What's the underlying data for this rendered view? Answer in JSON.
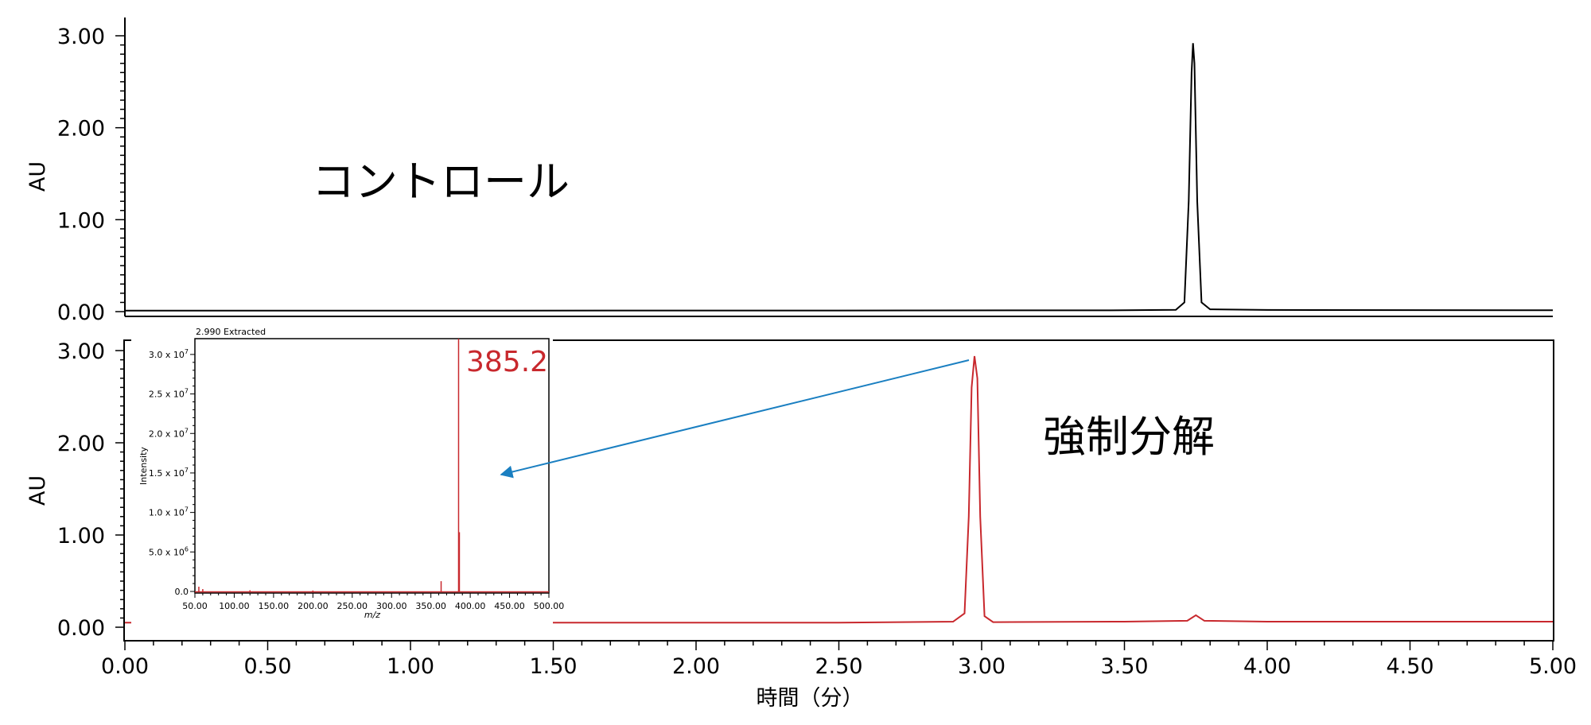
{
  "chart_data": [
    {
      "type": "line",
      "panel_label": "コントロール",
      "xlabel": "",
      "ylabel": "AU",
      "xlim": [
        0.0,
        5.0
      ],
      "ylim": [
        0.0,
        3.0
      ],
      "y_ticks": [
        "0.00",
        "1.00",
        "2.00",
        "3.00"
      ],
      "y_tick_values": [
        0,
        1,
        2,
        3
      ],
      "line_color": "#000000",
      "series": [
        {
          "points": [
            [
              0.0,
              0.01
            ],
            [
              2.5,
              0.012
            ],
            [
              3.5,
              0.015
            ],
            [
              3.68,
              0.02
            ],
            [
              3.71,
              0.1
            ],
            [
              3.725,
              1.2
            ],
            [
              3.735,
              2.6
            ],
            [
              3.74,
              2.92
            ],
            [
              3.745,
              2.7
            ],
            [
              3.755,
              1.2
            ],
            [
              3.77,
              0.1
            ],
            [
              3.8,
              0.025
            ],
            [
              4.0,
              0.018
            ],
            [
              5.0,
              0.015
            ]
          ]
        }
      ]
    },
    {
      "type": "line",
      "panel_label": "強制分解",
      "xlabel": "時間（分）",
      "ylabel": "AU",
      "xlim": [
        0.0,
        5.0
      ],
      "ylim": [
        0.0,
        3.0
      ],
      "x_ticks": [
        "0.00",
        "0.50",
        "1.00",
        "1.50",
        "2.00",
        "2.50",
        "3.00",
        "3.50",
        "4.00",
        "4.50",
        "5.00"
      ],
      "x_tick_values": [
        0,
        0.5,
        1,
        1.5,
        2,
        2.5,
        3,
        3.5,
        4,
        4.5,
        5
      ],
      "y_ticks": [
        "0.00",
        "1.00",
        "2.00",
        "3.00"
      ],
      "y_tick_values": [
        0,
        1,
        2,
        3
      ],
      "line_color": "#c8282d",
      "series": [
        {
          "points": [
            [
              0.0,
              0.05
            ],
            [
              2.5,
              0.05
            ],
            [
              2.9,
              0.06
            ],
            [
              2.94,
              0.15
            ],
            [
              2.955,
              1.2
            ],
            [
              2.965,
              2.6
            ],
            [
              2.975,
              2.94
            ],
            [
              2.985,
              2.7
            ],
            [
              2.995,
              1.2
            ],
            [
              3.01,
              0.12
            ],
            [
              3.04,
              0.055
            ],
            [
              3.5,
              0.06
            ],
            [
              3.72,
              0.07
            ],
            [
              3.75,
              0.13
            ],
            [
              3.78,
              0.07
            ],
            [
              4.0,
              0.06
            ],
            [
              5.0,
              0.06
            ]
          ]
        }
      ]
    },
    {
      "type": "line",
      "inset_title": "2.990 Extracted",
      "xlabel": "m/z",
      "ylabel": "Intensity",
      "xlim": [
        50,
        500
      ],
      "ylim": [
        0,
        32000000.0
      ],
      "x_ticks": [
        "50.00",
        "100.00",
        "150.00",
        "200.00",
        "250.00",
        "300.00",
        "350.00",
        "400.00",
        "450.00",
        "500.00"
      ],
      "x_tick_values": [
        50,
        100,
        150,
        200,
        250,
        300,
        350,
        400,
        450,
        500
      ],
      "y_ticks": [
        "0.0",
        "5.0 x 10",
        "1.0 x 10",
        "1.5 x 10",
        "2.0 x 10",
        "2.5 x 10",
        "3.0 x 10"
      ],
      "y_tick_exponents": [
        "",
        "6",
        "7",
        "7",
        "7",
        "7",
        "7"
      ],
      "y_tick_values": [
        0,
        5000000.0,
        10000000.0,
        15000000.0,
        20000000.0,
        25000000.0,
        30000000.0
      ],
      "peak_label": "385.2",
      "line_color": "#c8282d",
      "peaks": [
        [
          55,
          600000
        ],
        [
          60,
          300000
        ],
        [
          120,
          150000
        ],
        [
          200,
          120000
        ],
        [
          363,
          1300000
        ],
        [
          385.2,
          32000000.0
        ],
        [
          386.2,
          7500000
        ]
      ]
    }
  ],
  "annotation_arrow": {
    "color": "#1a7fc1",
    "from_panel": "強制分解",
    "from_point": [
      3.0,
      2.94
    ],
    "to_point": "385.2"
  }
}
